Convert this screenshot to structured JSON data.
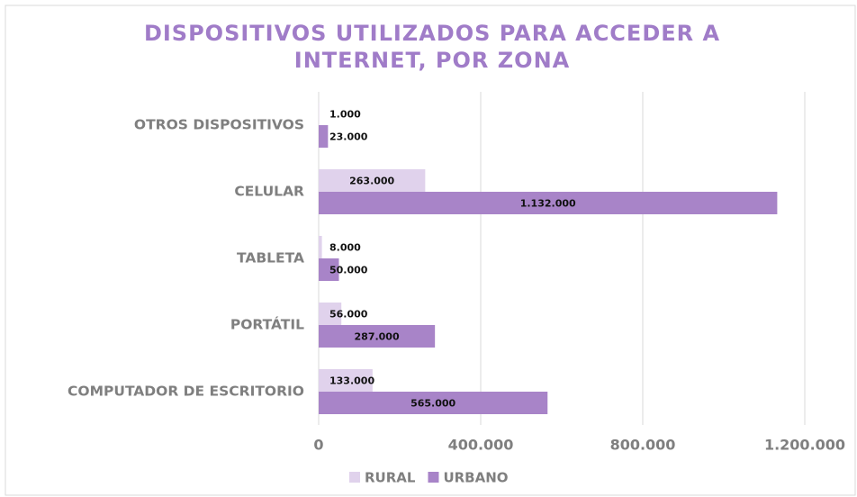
{
  "chart_data": {
    "type": "hbar",
    "title": "DISPOSITIVOS UTILIZADOS PARA ACCEDER A INTERNET, POR ZONA",
    "categories": [
      "OTROS DISPOSITIVOS",
      "CELULAR",
      "TABLETA",
      "PORTÁTIL",
      "COMPUTADOR DE ESCRITORIO"
    ],
    "series": [
      {
        "name": "RURAL",
        "color": "#e0d2ec",
        "values": [
          1000,
          263000,
          8000,
          56000,
          133000
        ],
        "value_labels": [
          "1.000",
          "263.000",
          "8.000",
          "56.000",
          "133.000"
        ]
      },
      {
        "name": "URBANO",
        "color": "#a884c8",
        "values": [
          23000,
          1132000,
          50000,
          287000,
          565000
        ],
        "value_labels": [
          "23.000",
          "1.132.000",
          "50.000",
          "287.000",
          "565.000"
        ]
      }
    ],
    "xlim": [
      0,
      1300000
    ],
    "xticks": [
      0,
      {
        "value": 400000,
        "label": "400.000"
      },
      {
        "value": 800000,
        "label": "800.000"
      },
      {
        "value": 1200000,
        "label": "1.200.000"
      }
    ],
    "grid": true,
    "legend": "bottom"
  }
}
